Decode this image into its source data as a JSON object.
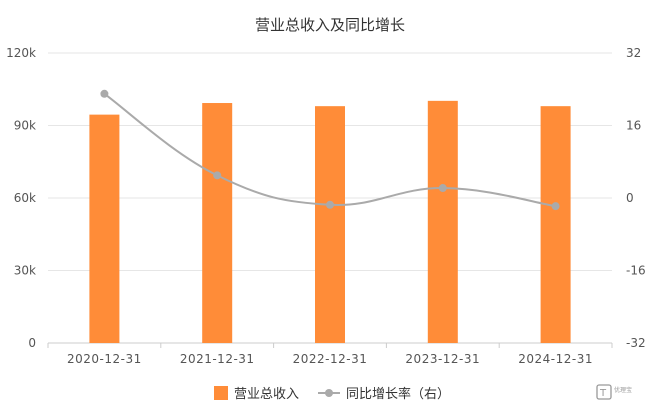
{
  "chart_data": {
    "type": "bar",
    "title": "营业总收入及同比增长",
    "categories": [
      "2020-12-31",
      "2021-12-31",
      "2022-12-31",
      "2023-12-31",
      "2024-12-31"
    ],
    "series": [
      {
        "name": "营业总收入",
        "type": "bar",
        "axis": "left",
        "color": "#FF8C38",
        "values": [
          94500,
          99300,
          98000,
          100200,
          98000
        ]
      },
      {
        "name": "同比增长率（右）",
        "type": "line",
        "axis": "right",
        "color": "#AAAAAA",
        "values": [
          23.0,
          5.0,
          -1.5,
          2.2,
          -1.8
        ]
      }
    ],
    "y_left": {
      "ticks": [
        "0",
        "30k",
        "60k",
        "90k",
        "120k"
      ],
      "range": [
        0,
        120000
      ]
    },
    "y_right": {
      "ticks": [
        "-32",
        "-16",
        "0",
        "16",
        "32"
      ],
      "range": [
        -32,
        32
      ]
    },
    "grid": true,
    "legend_position": "bottom"
  },
  "watermark": {
    "text": "优理宝"
  }
}
